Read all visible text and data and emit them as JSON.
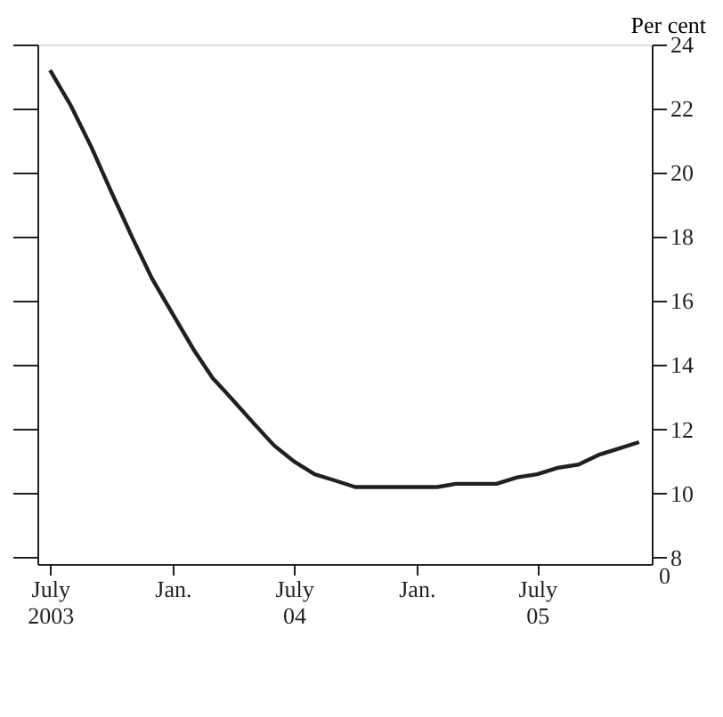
{
  "chart_data": {
    "type": "line",
    "ylabel": "Per cent",
    "x": [
      "2003-07",
      "2003-08",
      "2003-09",
      "2003-10",
      "2003-11",
      "2003-12",
      "2004-01",
      "2004-02",
      "2004-03",
      "2004-04",
      "2004-05",
      "2004-06",
      "2004-07",
      "2004-08",
      "2004-09",
      "2004-10",
      "2004-11",
      "2004-12",
      "2005-01",
      "2005-02",
      "2005-03",
      "2005-04",
      "2005-05",
      "2005-06",
      "2005-07",
      "2005-08",
      "2005-09",
      "2005-10",
      "2005-11",
      "2005-12"
    ],
    "series": [
      {
        "color": "#231f20",
        "values": [
          23.2,
          22.1,
          20.8,
          19.4,
          18.0,
          16.7,
          15.6,
          14.5,
          13.6,
          12.9,
          12.2,
          11.5,
          11.0,
          10.6,
          10.4,
          10.2,
          10.2,
          10.2,
          10.2,
          10.2,
          10.3,
          10.3,
          10.3,
          10.5,
          10.6,
          10.8,
          10.9,
          11.2,
          11.4,
          11.6
        ]
      }
    ],
    "xlim": [
      "2003-06-12",
      "2005-12-20"
    ],
    "xticks": [
      {
        "value": "2003-07",
        "label": "July\n2003"
      },
      {
        "value": "2004-01",
        "label": "Jan."
      },
      {
        "value": "2004-07",
        "label": "July\n04"
      },
      {
        "value": "2005-01",
        "label": "Jan."
      },
      {
        "value": "2005-07",
        "label": "July\n05"
      }
    ],
    "ylim": [
      7.8,
      24
    ],
    "yticks": [
      8,
      10,
      12,
      14,
      16,
      18,
      20,
      22,
      24
    ],
    "annotations": [
      "0"
    ],
    "grid": false,
    "line_style": "solid",
    "marker": "none"
  }
}
